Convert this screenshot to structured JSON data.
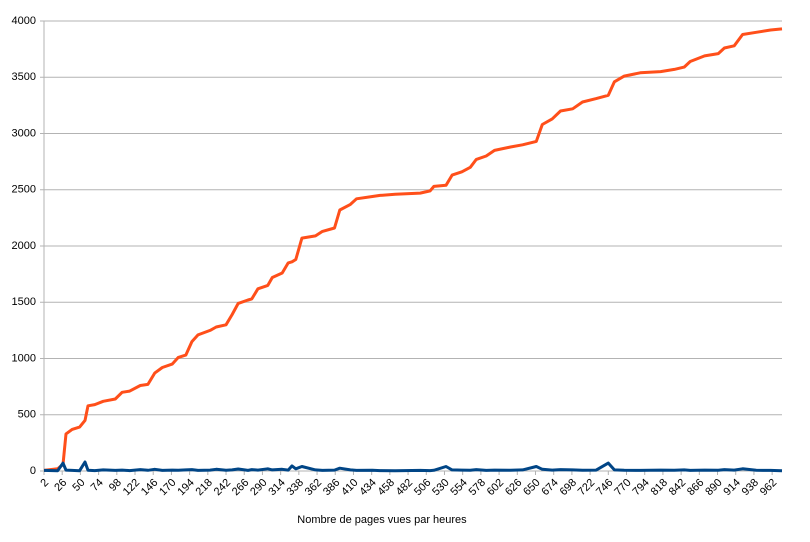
{
  "chart_data": {
    "type": "line",
    "x_label": "Nombre de pages vues par heures",
    "x": [
      2,
      20,
      27,
      31,
      39,
      49,
      56,
      60,
      69,
      80,
      96,
      105,
      115,
      129,
      139,
      148,
      158,
      171,
      179,
      189,
      197,
      205,
      221,
      229,
      242,
      250,
      258,
      271,
      276,
      284,
      297,
      303,
      316,
      324,
      329,
      334,
      342,
      360,
      369,
      385,
      392,
      406,
      414,
      435,
      445,
      465,
      498,
      511,
      516,
      532,
      540,
      553,
      564,
      572,
      585,
      596,
      617,
      633,
      651,
      659,
      672,
      683,
      699,
      712,
      730,
      746,
      754,
      767,
      788,
      815,
      833,
      846,
      854,
      873,
      891,
      899,
      912,
      923,
      941,
      960,
      975
    ],
    "series": [
      {
        "color": "#ff4f1a",
        "values": [
          5,
          20,
          60,
          330,
          370,
          390,
          450,
          580,
          590,
          620,
          640,
          700,
          710,
          760,
          770,
          870,
          920,
          950,
          1010,
          1030,
          1150,
          1210,
          1250,
          1280,
          1300,
          1390,
          1490,
          1520,
          1530,
          1620,
          1650,
          1720,
          1760,
          1850,
          1860,
          1880,
          2070,
          2090,
          2130,
          2160,
          2320,
          2370,
          2420,
          2440,
          2450,
          2460,
          2470,
          2490,
          2530,
          2540,
          2630,
          2660,
          2700,
          2770,
          2800,
          2850,
          2880,
          2900,
          2930,
          3080,
          3130,
          3200,
          3220,
          3280,
          3310,
          3340,
          3460,
          3510,
          3540,
          3550,
          3570,
          3590,
          3640,
          3690,
          3710,
          3760,
          3780,
          3880,
          3900,
          3920,
          3930
        ]
      },
      {
        "color": "#004586",
        "values": [
          5,
          3,
          70,
          8,
          5,
          3,
          80,
          6,
          4,
          10,
          5,
          8,
          4,
          12,
          6,
          15,
          5,
          8,
          6,
          10,
          12,
          5,
          8,
          15,
          6,
          10,
          18,
          5,
          12,
          8,
          20,
          10,
          15,
          8,
          45,
          20,
          40,
          10,
          5,
          8,
          25,
          10,
          5,
          6,
          4,
          3,
          5,
          4,
          6,
          40,
          10,
          8,
          6,
          12,
          5,
          8,
          6,
          10,
          40,
          15,
          8,
          12,
          10,
          6,
          8,
          70,
          10,
          6,
          5,
          8,
          6,
          10,
          5,
          8,
          6,
          12,
          8,
          20,
          6,
          5,
          3
        ]
      }
    ],
    "xlim": [
      2,
      975
    ],
    "xticks": [
      2,
      26,
      50,
      74,
      98,
      122,
      146,
      170,
      194,
      218,
      242,
      266,
      290,
      314,
      338,
      362,
      386,
      410,
      434,
      458,
      482,
      506,
      530,
      554,
      578,
      602,
      626,
      650,
      674,
      698,
      722,
      746,
      770,
      794,
      818,
      842,
      866,
      890,
      914,
      938,
      962
    ],
    "ylim": [
      0,
      4000
    ],
    "yticks": [
      0,
      500,
      1000,
      1500,
      2000,
      2500,
      3000,
      3500,
      4000
    ],
    "grid": true
  }
}
